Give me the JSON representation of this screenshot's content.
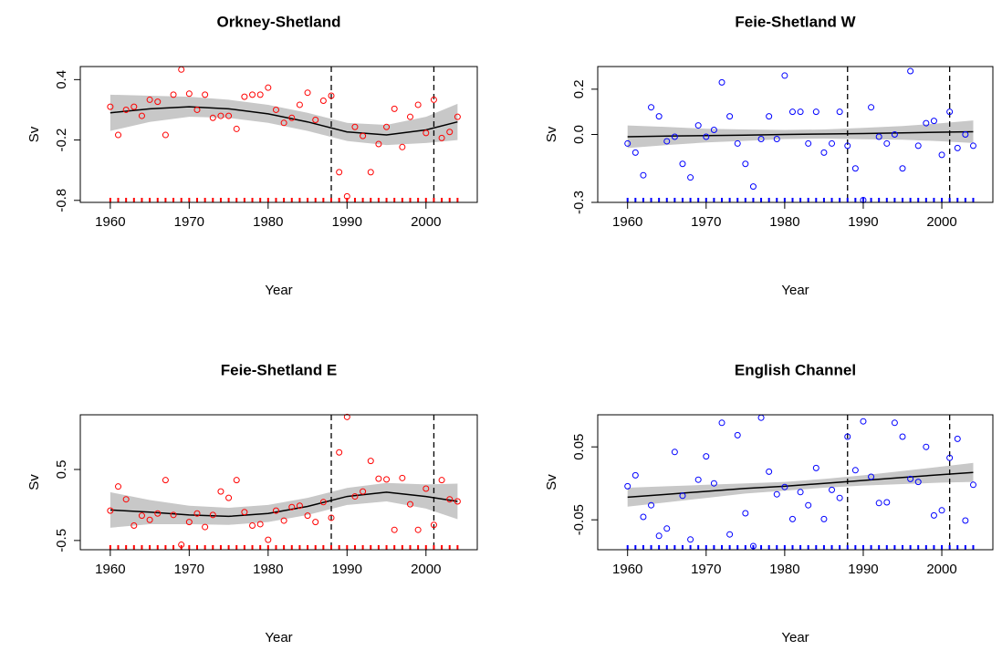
{
  "chart_data": [
    {
      "type": "scatter",
      "title": "Orkney-Shetland",
      "xlabel": "Year",
      "ylabel": "Sv",
      "color": "#ff0000",
      "x": [
        1960,
        1961,
        1962,
        1963,
        1964,
        1965,
        1966,
        1967,
        1968,
        1969,
        1970,
        1971,
        1972,
        1973,
        1974,
        1975,
        1976,
        1977,
        1978,
        1979,
        1980,
        1981,
        1982,
        1983,
        1984,
        1985,
        1986,
        1987,
        1988,
        1989,
        1990,
        1991,
        1992,
        1993,
        1994,
        1995,
        1996,
        1997,
        1998,
        1999,
        2000,
        2001,
        2002,
        2003,
        2004
      ],
      "values": [
        0.13,
        -0.15,
        0.1,
        0.13,
        0.04,
        0.2,
        0.18,
        -0.15,
        0.25,
        0.5,
        0.26,
        0.1,
        0.25,
        0.02,
        0.04,
        0.04,
        -0.09,
        0.23,
        0.25,
        0.25,
        0.32,
        0.1,
        -0.03,
        0.02,
        0.15,
        0.27,
        0.0,
        0.19,
        0.24,
        -0.52,
        -0.76,
        -0.07,
        -0.16,
        -0.52,
        -0.24,
        -0.07,
        0.11,
        -0.27,
        0.03,
        0.15,
        -0.13,
        0.2,
        -0.18,
        -0.12,
        0.03
      ],
      "fit_x": [
        1960,
        1965,
        1970,
        1975,
        1980,
        1985,
        1990,
        1995,
        2000,
        2004
      ],
      "fit": [
        0.07,
        0.11,
        0.13,
        0.11,
        0.06,
        -0.02,
        -0.12,
        -0.15,
        -0.1,
        -0.02
      ],
      "fit_lower": [
        -0.11,
        -0.02,
        0.03,
        0.02,
        -0.03,
        -0.11,
        -0.21,
        -0.25,
        -0.23,
        -0.2
      ],
      "fit_upper": [
        0.25,
        0.24,
        0.23,
        0.2,
        0.15,
        0.07,
        -0.03,
        -0.05,
        0.03,
        0.16
      ],
      "vlines": [
        1988,
        2001
      ],
      "xlim": [
        1956.2,
        2006.5
      ],
      "xticks": [
        1960,
        1970,
        1980,
        1990,
        2000
      ],
      "ylim": [
        -0.82,
        0.53
      ],
      "yticks": [
        -0.8,
        -0.2,
        0.4
      ]
    },
    {
      "type": "scatter",
      "title": "Feie-Shetland W",
      "xlabel": "Year",
      "ylabel": "Sv",
      "color": "#0000ff",
      "x": [
        1960,
        1961,
        1962,
        1963,
        1964,
        1965,
        1966,
        1967,
        1968,
        1969,
        1970,
        1971,
        1972,
        1973,
        1974,
        1975,
        1976,
        1977,
        1978,
        1979,
        1980,
        1981,
        1982,
        1983,
        1984,
        1985,
        1986,
        1987,
        1988,
        1989,
        1990,
        1991,
        1992,
        1993,
        1994,
        1995,
        1996,
        1997,
        1998,
        1999,
        2000,
        2001,
        2002,
        2003,
        2004
      ],
      "values": [
        -0.04,
        -0.08,
        -0.18,
        0.12,
        0.08,
        -0.03,
        -0.01,
        -0.13,
        -0.19,
        0.04,
        -0.01,
        0.02,
        0.23,
        0.08,
        -0.04,
        -0.13,
        -0.23,
        -0.02,
        0.08,
        -0.02,
        0.26,
        0.1,
        0.1,
        -0.04,
        0.1,
        -0.08,
        -0.04,
        0.1,
        -0.05,
        -0.15,
        -0.29,
        0.12,
        -0.01,
        -0.04,
        0.0,
        -0.15,
        0.28,
        -0.05,
        0.05,
        0.06,
        -0.09,
        0.1,
        -0.06,
        0.0,
        -0.05
      ],
      "fit_x": [
        1960,
        1965,
        1970,
        1975,
        1980,
        1985,
        1990,
        1995,
        2000,
        2004
      ],
      "fit": [
        -0.01,
        -0.007,
        -0.005,
        -0.003,
        0,
        0.002,
        0.004,
        0.007,
        0.01,
        0.012
      ],
      "fit_lower": [
        -0.06,
        -0.047,
        -0.035,
        -0.028,
        -0.02,
        -0.018,
        -0.021,
        -0.023,
        -0.03,
        -0.038
      ],
      "fit_upper": [
        0.04,
        0.033,
        0.025,
        0.022,
        0.02,
        0.022,
        0.029,
        0.037,
        0.05,
        0.062
      ],
      "vlines": [
        1988,
        2001
      ],
      "xlim": [
        1956.2,
        2006.5
      ],
      "xticks": [
        1960,
        1970,
        1980,
        1990,
        2000
      ],
      "ylim": [
        -0.3,
        0.3
      ],
      "yticks": [
        -0.3,
        {
          "value": 0,
          "label": "0.0"
        },
        0.2
      ]
    },
    {
      "type": "scatter",
      "title": "Feie-Shetland E",
      "xlabel": "Year",
      "ylabel": "Sv",
      "color": "#ff0000",
      "x": [
        1960,
        1961,
        1962,
        1963,
        1964,
        1965,
        1966,
        1967,
        1968,
        1969,
        1970,
        1971,
        1972,
        1973,
        1974,
        1975,
        1976,
        1977,
        1978,
        1979,
        1980,
        1981,
        1982,
        1983,
        1984,
        1985,
        1986,
        1987,
        1988,
        1989,
        1990,
        1991,
        1992,
        1993,
        1994,
        1995,
        1996,
        1997,
        1998,
        1999,
        2000,
        2001,
        2002,
        2003,
        2004
      ],
      "values": [
        -0.08,
        0.26,
        0.08,
        -0.29,
        -0.15,
        -0.21,
        -0.12,
        0.35,
        -0.14,
        -0.56,
        -0.24,
        -0.12,
        -0.31,
        -0.14,
        0.19,
        0.1,
        0.35,
        -0.1,
        -0.29,
        -0.27,
        -0.49,
        -0.08,
        -0.22,
        -0.03,
        -0.01,
        -0.15,
        -0.24,
        0.04,
        -0.18,
        0.74,
        1.24,
        0.12,
        0.19,
        0.62,
        0.37,
        0.36,
        -0.35,
        0.38,
        0.01,
        -0.35,
        0.23,
        -0.28,
        0.35,
        0.08,
        0.05
      ],
      "fit_x": [
        1960,
        1965,
        1970,
        1975,
        1980,
        1985,
        1990,
        1995,
        2000,
        2004
      ],
      "fit": [
        -0.07,
        -0.1,
        -0.14,
        -0.16,
        -0.12,
        -0.02,
        0.12,
        0.18,
        0.12,
        0.05
      ],
      "fit_lower": [
        -0.32,
        -0.27,
        -0.27,
        -0.28,
        -0.24,
        -0.14,
        0,
        0.05,
        -0.05,
        -0.2
      ],
      "fit_upper": [
        0.18,
        0.07,
        -0.01,
        -0.04,
        0,
        0.1,
        0.24,
        0.31,
        0.29,
        0.3
      ],
      "vlines": [
        1988,
        2001
      ],
      "xlim": [
        1956.2,
        2006.5
      ],
      "xticks": [
        1960,
        1970,
        1980,
        1990,
        2000
      ],
      "ylim": [
        -0.63,
        1.27
      ],
      "yticks": [
        -0.5,
        0.5
      ]
    },
    {
      "type": "scatter",
      "title": "English Channel",
      "xlabel": "Year",
      "ylabel": "Sv",
      "color": "#0000ff",
      "x": [
        1960,
        1961,
        1962,
        1963,
        1964,
        1965,
        1966,
        1967,
        1968,
        1969,
        1970,
        1971,
        1972,
        1973,
        1974,
        1975,
        1976,
        1977,
        1978,
        1979,
        1980,
        1981,
        1982,
        1983,
        1984,
        1985,
        1986,
        1987,
        1988,
        1989,
        1990,
        1991,
        1992,
        1993,
        1994,
        1995,
        1996,
        1997,
        1998,
        1999,
        2000,
        2001,
        2002,
        2003,
        2004
      ],
      "values": [
        -0.004,
        0.011,
        -0.046,
        -0.03,
        -0.072,
        -0.062,
        0.043,
        -0.017,
        -0.077,
        0.005,
        0.037,
        0.0,
        0.083,
        -0.07,
        0.066,
        -0.041,
        -0.086,
        0.09,
        0.016,
        -0.015,
        -0.005,
        -0.049,
        -0.012,
        -0.03,
        0.021,
        -0.049,
        -0.009,
        -0.02,
        0.064,
        0.018,
        0.085,
        0.009,
        -0.027,
        -0.026,
        0.083,
        0.064,
        0.006,
        0.002,
        0.05,
        -0.044,
        -0.037,
        0.035,
        0.061,
        -0.051,
        -0.002
      ],
      "fit_x": [
        1960,
        1965,
        1970,
        1975,
        1980,
        1985,
        1990,
        1995,
        2000,
        2004
      ],
      "fit": [
        -0.019,
        -0.015,
        -0.011,
        -0.007,
        -0.004,
        0.0,
        0.004,
        0.008,
        0.012,
        0.015
      ],
      "fit_lower": [
        -0.032,
        -0.026,
        -0.02,
        -0.014,
        -0.01,
        -0.006,
        -0.003,
        -0.001,
        0.001,
        0.002
      ],
      "fit_upper": [
        -0.006,
        -0.004,
        -0.002,
        0,
        0.002,
        0.006,
        0.011,
        0.017,
        0.023,
        0.028
      ],
      "vlines": [
        1988,
        2001
      ],
      "xlim": [
        1956.2,
        2006.5
      ],
      "xticks": [
        1960,
        1970,
        1980,
        1990,
        2000
      ],
      "ylim": [
        -0.091,
        0.094
      ],
      "yticks": [
        -0.05,
        0.05
      ]
    }
  ]
}
